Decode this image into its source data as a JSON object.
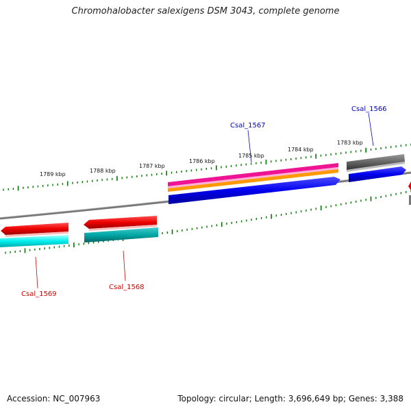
{
  "title": "Chromohalobacter salexigens DSM 3043, complete genome",
  "accession": "Accession: NC_007963",
  "topology": "Topology: circular; Length: 3,696,649 bp; Genes: 3,388",
  "kbp_labels": [
    "1789 kbp",
    "1788 kbp",
    "1787 kbp",
    "1786 kbp",
    "1785 kbp",
    "1784 kbp",
    "1783 kbp"
  ],
  "gene_labels": {
    "csal_1566": "Csal_1566",
    "csal_1567": "Csal_1567",
    "csal_1568": "Csal_1568",
    "csal_1569": "Csal_1569"
  },
  "colors": {
    "cds_forward": "#0000ee",
    "cds_reverse_red": "#ee0000",
    "cds_cyan": "#00eeee",
    "cds_teal": "#00a6a6",
    "pink": "#ee1493",
    "orange": "#ff9900",
    "gray": "#666666",
    "tick_green": "#007700",
    "label_blue": "#0000bb",
    "label_red": "#cc0000"
  }
}
